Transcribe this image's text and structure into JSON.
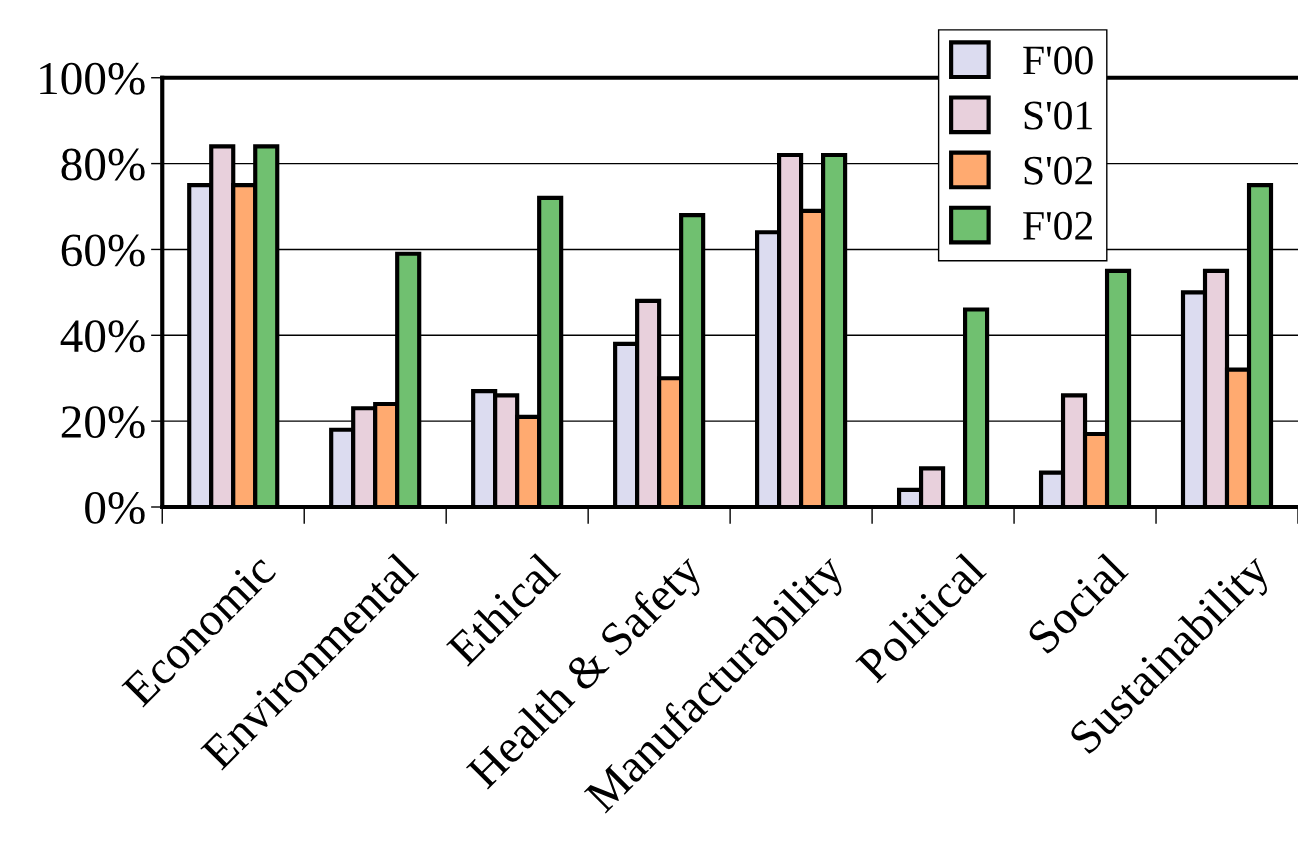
{
  "chart_data": {
    "type": "bar",
    "categories": [
      "Economic",
      "Environmental",
      "Ethical",
      "Health & Safety",
      "Manufacturability",
      "Political",
      "Social",
      "Sustainability"
    ],
    "series": [
      {
        "name": "F'00",
        "color": "#dcdcf0",
        "values": [
          75,
          18,
          27,
          38,
          64,
          4,
          8,
          50
        ]
      },
      {
        "name": "S'01",
        "color": "#e8d0dc",
        "values": [
          84,
          23,
          26,
          48,
          82,
          9,
          26,
          55
        ]
      },
      {
        "name": "S'02",
        "color": "#ffaa70",
        "values": [
          75,
          24,
          21,
          30,
          69,
          null,
          17,
          32
        ]
      },
      {
        "name": "F'02",
        "color": "#70c070",
        "values": [
          84,
          59,
          72,
          68,
          82,
          46,
          55,
          75
        ]
      }
    ],
    "ylim": [
      0,
      100
    ],
    "yticks": [
      {
        "value": 0,
        "label": "0%"
      },
      {
        "value": 20,
        "label": "20%"
      },
      {
        "value": 40,
        "label": "40%"
      },
      {
        "value": 60,
        "label": "60%"
      },
      {
        "value": 80,
        "label": "80%"
      },
      {
        "value": 100,
        "label": "100%"
      }
    ],
    "grid": "y",
    "legend": "top right"
  }
}
